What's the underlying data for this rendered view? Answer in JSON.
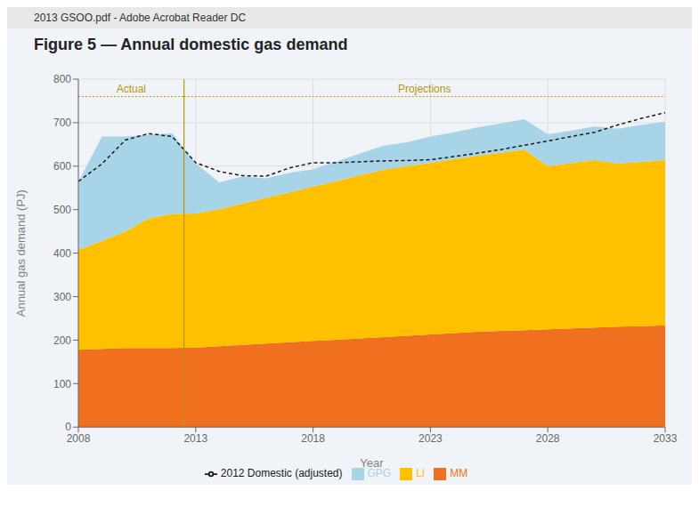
{
  "chart_data": {
    "type": "area",
    "title": "Figure 5 — Annual domestic gas demand",
    "subtitle": "2013 GSOO.pdf - Adobe Acrobat Reader DC",
    "xlabel": "Year",
    "ylabel": "Annual gas demand (PJ)",
    "x": [
      2008,
      2009,
      2010,
      2011,
      2012,
      2013,
      2014,
      2015,
      2016,
      2017,
      2018,
      2019,
      2020,
      2021,
      2022,
      2023,
      2024,
      2025,
      2026,
      2027,
      2028,
      2029,
      2030,
      2031,
      2032,
      2033
    ],
    "series": [
      {
        "name": "MM",
        "type": "area",
        "color": "#f07020",
        "values": [
          178,
          180,
          182,
          182,
          182,
          183,
          186,
          189,
          192,
          195,
          198,
          201,
          204,
          207,
          210,
          213,
          216,
          219,
          221,
          223,
          225,
          227,
          229,
          231,
          232,
          234
        ]
      },
      {
        "name": "LI",
        "type": "area",
        "color": "#ffc000",
        "values": [
          230,
          248,
          268,
          298,
          308,
          308,
          315,
          325,
          335,
          345,
          355,
          365,
          375,
          385,
          390,
          395,
          400,
          405,
          410,
          415,
          375,
          380,
          385,
          375,
          378,
          380
        ]
      },
      {
        "name": "GPG",
        "type": "area",
        "color": "#a8d4e8",
        "values": [
          155,
          240,
          218,
          192,
          185,
          115,
          62,
          62,
          45,
          45,
          40,
          45,
          50,
          55,
          55,
          60,
          62,
          65,
          67,
          70,
          73,
          75,
          77,
          80,
          85,
          88
        ]
      },
      {
        "name": "2012 Domestic (adjusted)",
        "type": "line",
        "line_style": "dashed",
        "color": "#1a1a1a",
        "values": [
          565,
          605,
          660,
          675,
          668,
          608,
          588,
          578,
          577,
          596,
          608,
          608,
          610,
          612,
          613,
          615,
          622,
          630,
          638,
          648,
          658,
          668,
          678,
          695,
          710,
          723
        ]
      }
    ],
    "stacked": true,
    "xlim": [
      2008,
      2033
    ],
    "xticks": [
      2008,
      2013,
      2018,
      2023,
      2028,
      2033
    ],
    "ylim": [
      0,
      800
    ],
    "yticks": [
      0,
      100,
      200,
      300,
      400,
      500,
      600,
      700,
      800
    ],
    "grid": true,
    "legend": "bottom",
    "vline": {
      "x": 2012.5,
      "color": "#b8960c"
    },
    "annotations": [
      {
        "text": "Actual",
        "x": [
          2008,
          2012.5
        ],
        "y": 760,
        "color": "#b8960c"
      },
      {
        "text": "Projections",
        "x": [
          2012.5,
          2033
        ],
        "y": 760,
        "color": "#b8960c"
      }
    ]
  }
}
